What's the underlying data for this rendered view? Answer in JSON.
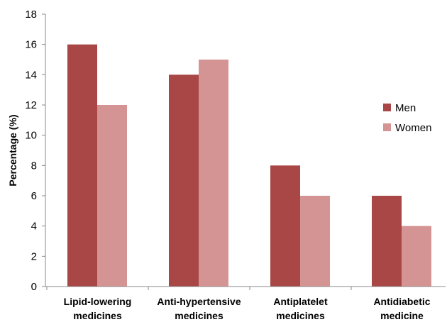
{
  "chart_data": {
    "type": "bar",
    "title": "",
    "xlabel": "",
    "ylabel": "Percentage (%)",
    "ylim": [
      0,
      18
    ],
    "yticks": [
      0,
      2,
      4,
      6,
      8,
      10,
      12,
      14,
      16,
      18
    ],
    "grid": false,
    "legend_position": "right",
    "categories": [
      [
        "Lipid-lowering",
        "medicines"
      ],
      [
        "Anti-hypertensive",
        "medicines"
      ],
      [
        "Antiplatelet",
        "medicines"
      ],
      [
        "Antidiabetic",
        "medicine"
      ]
    ],
    "series": [
      {
        "name": "Men",
        "color": "#A84745",
        "values": [
          16,
          14,
          8,
          6
        ]
      },
      {
        "name": "Women",
        "color": "#D49493",
        "values": [
          12,
          15,
          6,
          4
        ]
      }
    ]
  }
}
